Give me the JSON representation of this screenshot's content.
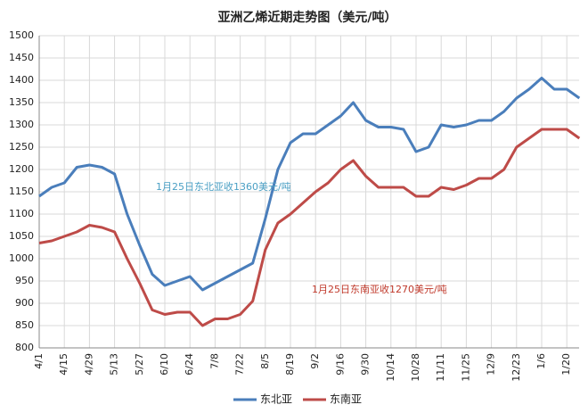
{
  "chart_data": {
    "type": "line",
    "title": "亚洲乙烯近期走势图（美元/吨）",
    "categories": [
      "4/1",
      null,
      "4/15",
      null,
      "4/29",
      null,
      "5/13",
      null,
      "5/27",
      null,
      "6/10",
      null,
      "6/24",
      null,
      "7/8",
      null,
      "7/22",
      null,
      "8/5",
      null,
      "8/19",
      null,
      "9/2",
      null,
      "9/16",
      null,
      "9/30",
      null,
      "10/14",
      null,
      "10/28",
      null,
      "11/11",
      null,
      "11/25",
      null,
      "12/9",
      null,
      "12/23",
      null,
      "1/6",
      null,
      "1/20",
      null
    ],
    "series": [
      {
        "name": "东北亚",
        "color": "#4a7ebb",
        "values": [
          1140,
          1160,
          1170,
          1205,
          1210,
          1205,
          1190,
          1100,
          1030,
          965,
          940,
          950,
          960,
          930,
          945,
          960,
          975,
          990,
          1090,
          1200,
          1260,
          1280,
          1280,
          1300,
          1320,
          1350,
          1310,
          1295,
          1295,
          1290,
          1240,
          1250,
          1300,
          1295,
          1300,
          1310,
          1310,
          1330,
          1360,
          1380,
          1405,
          1380,
          1380,
          1360
        ]
      },
      {
        "name": "东南亚",
        "color": "#be4b48",
        "values": [
          1035,
          1040,
          1050,
          1060,
          1075,
          1070,
          1060,
          1000,
          945,
          885,
          875,
          880,
          880,
          850,
          865,
          865,
          875,
          905,
          1020,
          1080,
          1100,
          1125,
          1150,
          1170,
          1200,
          1220,
          1185,
          1160,
          1160,
          1160,
          1140,
          1140,
          1160,
          1155,
          1165,
          1180,
          1180,
          1200,
          1250,
          1270,
          1290,
          1290,
          1290,
          1270
        ]
      }
    ],
    "annotations": [
      {
        "text": "1月25日东北亚收1360美元/吨",
        "color": "#4a9fc4"
      },
      {
        "text": "1月25日东南亚收1270美元/吨",
        "color": "#c0392b"
      }
    ],
    "ylim": [
      800,
      1500
    ],
    "yticks": [
      800,
      850,
      900,
      950,
      1000,
      1050,
      1100,
      1150,
      1200,
      1250,
      1300,
      1350,
      1400,
      1450,
      1500
    ],
    "grid": true,
    "legend": "bottom"
  }
}
